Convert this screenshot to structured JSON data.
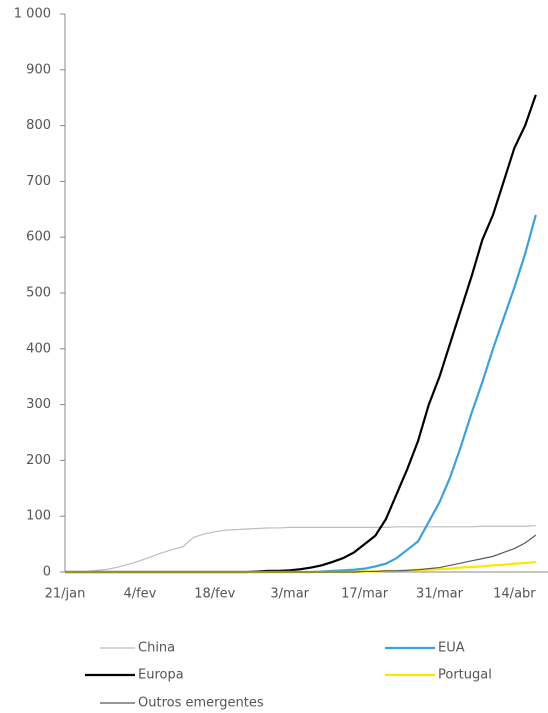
{
  "chart_data": {
    "type": "line",
    "categories": [
      "21/jan",
      null,
      null,
      null,
      null,
      null,
      null,
      "4/fev",
      null,
      null,
      null,
      null,
      null,
      null,
      "18/fev",
      null,
      null,
      null,
      null,
      null,
      null,
      "3/mar",
      null,
      null,
      null,
      null,
      null,
      null,
      "17/mar",
      null,
      null,
      null,
      null,
      null,
      null,
      "31/mar",
      null,
      null,
      null,
      null,
      null,
      null,
      "14/abr",
      null,
      null
    ],
    "series": [
      {
        "name": "China",
        "color": "#bdbdbd",
        "values": [
          0,
          0,
          1,
          3,
          5,
          9,
          14,
          20,
          27,
          34,
          40,
          45,
          62,
          68,
          72,
          75,
          76,
          77,
          78,
          79,
          79,
          80,
          80,
          80,
          80,
          80,
          80,
          80,
          80,
          80,
          80,
          81,
          81,
          81,
          81,
          81,
          81,
          81,
          81,
          82,
          82,
          82,
          82,
          82,
          83
        ]
      },
      {
        "name": "EUA",
        "color": "#3fa0d8",
        "values": [
          0,
          0,
          0,
          0,
          0,
          0,
          0,
          0,
          0,
          0,
          0,
          0,
          0,
          0,
          0,
          0,
          0,
          0,
          0,
          0,
          0,
          0,
          0,
          0,
          1,
          2,
          3,
          4,
          6,
          10,
          15,
          25,
          40,
          55,
          90,
          125,
          170,
          225,
          285,
          340,
          400,
          455,
          510,
          570,
          640
        ]
      },
      {
        "name": "Europa",
        "color": "#000000",
        "values": [
          0,
          0,
          0,
          0,
          0,
          0,
          0,
          0,
          0,
          0,
          0,
          0,
          0,
          0,
          0,
          0,
          0,
          0,
          1,
          2,
          2,
          3,
          5,
          8,
          12,
          18,
          25,
          35,
          50,
          65,
          95,
          140,
          185,
          235,
          300,
          350,
          410,
          470,
          530,
          595,
          640,
          700,
          760,
          800,
          855
        ]
      },
      {
        "name": "Portugal",
        "color": "#ffe600",
        "values": [
          0,
          0,
          0,
          0,
          0,
          0,
          0,
          0,
          0,
          0,
          0,
          0,
          0,
          0,
          0,
          0,
          0,
          0,
          0,
          0,
          0,
          0,
          0,
          0,
          0,
          0,
          0,
          0,
          1,
          1,
          2,
          2,
          3,
          4,
          4,
          5,
          6,
          8,
          9,
          10,
          12,
          13,
          15,
          16,
          18
        ]
      },
      {
        "name": "Outros emergentes",
        "color": "#595959",
        "values": [
          0,
          0,
          0,
          0,
          0,
          0,
          0,
          0,
          0,
          0,
          0,
          0,
          0,
          0,
          0,
          0,
          0,
          0,
          0,
          0,
          0,
          0,
          0,
          0,
          0,
          0,
          0,
          0,
          1,
          1,
          2,
          2,
          3,
          4,
          6,
          8,
          12,
          16,
          20,
          24,
          28,
          35,
          42,
          52,
          66
        ]
      }
    ],
    "ylim": [
      0,
      1000
    ],
    "yticks": [
      0,
      100,
      200,
      300,
      400,
      500,
      600,
      700,
      800,
      900,
      {
        "value": 1000,
        "label": "1 000"
      }
    ]
  }
}
